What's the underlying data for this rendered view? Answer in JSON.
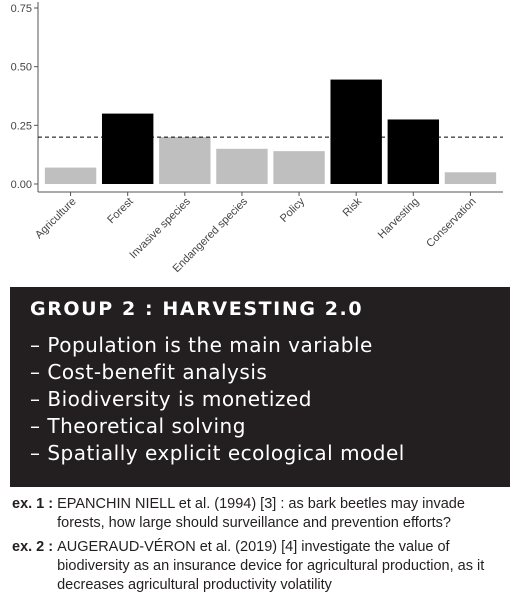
{
  "chart_data": {
    "type": "bar",
    "categories": [
      "Agriculture",
      "Forest",
      "Invasive species",
      "Endangered species",
      "Policy",
      "Risk",
      "Harvesting",
      "Conservation"
    ],
    "values": [
      0.07,
      0.3,
      0.2,
      0.15,
      0.14,
      0.445,
      0.275,
      0.05
    ],
    "highlighted": [
      false,
      true,
      false,
      false,
      false,
      true,
      true,
      false
    ],
    "colors": {
      "highlight": "#000000",
      "normal": "#bfbfbf"
    },
    "ylim": [
      0,
      0.75
    ],
    "yticks": [
      0,
      0.25,
      0.5,
      0.75
    ],
    "ytick_labels": [
      "0.00",
      "0.25",
      "0.50",
      "0.75"
    ],
    "reference_line": 0.2,
    "reference_line_style": "dashed",
    "grid": false
  },
  "group": {
    "title": "GROUP 2 : HARVESTING 2.0",
    "items": [
      "Population is the main variable",
      "Cost-benefit analysis",
      "Biodiversity is monetized",
      "Theoretical solving",
      "Spatially explicit ecological model"
    ]
  },
  "examples": [
    {
      "label": "ex. 1 :",
      "text": "EPANCHIN NIELL et al. (1994) [3] : as bark beetles may invade forests, how large should surveillance and prevention efforts?"
    },
    {
      "label": "ex. 2 :",
      "text": "AUGERAUD-VÉRON et al. (2019) [4] investigate the value of biodiversity as an insurance device for agricultural production, as it decreases agricultural productivity volatility"
    }
  ]
}
